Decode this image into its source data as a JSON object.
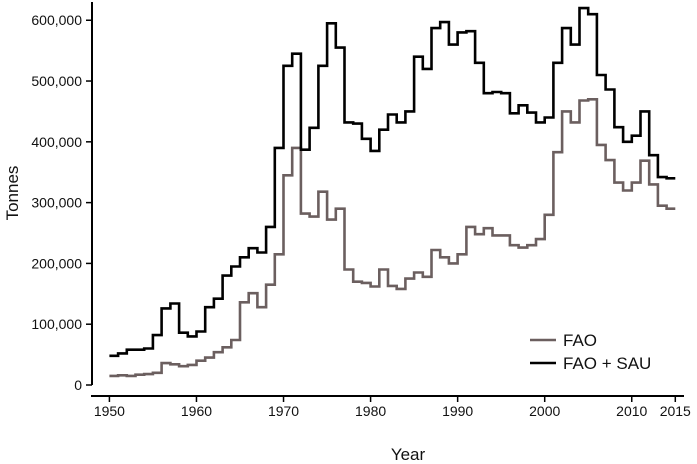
{
  "chart_data": {
    "type": "line",
    "step": true,
    "title": "",
    "xlabel": "Year",
    "ylabel": "Tonnes",
    "xlim": [
      1948,
      2016
    ],
    "ylim": [
      0,
      630000
    ],
    "x_ticks": [
      1950,
      1960,
      1970,
      1980,
      1990,
      2000,
      2010,
      2015
    ],
    "x_tick_labels": [
      "1950",
      "1960",
      "1970",
      "1980",
      "1990",
      "2000",
      "2010",
      "2015"
    ],
    "y_ticks": [
      0,
      100000,
      200000,
      300000,
      400000,
      500000,
      600000
    ],
    "y_tick_labels": [
      "0",
      "100,000",
      "200,000",
      "300,000",
      "400,000",
      "500,000",
      "600,000"
    ],
    "grid": false,
    "legend_position": "bottom-right",
    "x": [
      1950,
      1951,
      1952,
      1953,
      1954,
      1955,
      1956,
      1957,
      1958,
      1959,
      1960,
      1961,
      1962,
      1963,
      1964,
      1965,
      1966,
      1967,
      1968,
      1969,
      1970,
      1971,
      1972,
      1973,
      1974,
      1975,
      1976,
      1977,
      1978,
      1979,
      1980,
      1981,
      1982,
      1983,
      1984,
      1985,
      1986,
      1987,
      1988,
      1989,
      1990,
      1991,
      1992,
      1993,
      1994,
      1995,
      1996,
      1997,
      1998,
      1999,
      2000,
      2001,
      2002,
      2003,
      2004,
      2005,
      2006,
      2007,
      2008,
      2009,
      2010,
      2011,
      2012,
      2013,
      2014
    ],
    "series": [
      {
        "name": "FAO",
        "color": "#6b5f5f",
        "values": [
          15000,
          16000,
          15000,
          17000,
          18000,
          20000,
          36000,
          34000,
          31000,
          33000,
          40000,
          45000,
          54000,
          62000,
          74000,
          136000,
          151000,
          128000,
          165000,
          215000,
          345000,
          390000,
          282000,
          277000,
          318000,
          272000,
          290000,
          190000,
          170000,
          168000,
          162000,
          190000,
          163000,
          158000,
          175000,
          185000,
          178000,
          222000,
          210000,
          200000,
          215000,
          260000,
          248000,
          258000,
          246000,
          246000,
          230000,
          226000,
          230000,
          240000,
          280000,
          383000,
          450000,
          432000,
          468000,
          470000,
          395000,
          370000,
          333000,
          320000,
          333000,
          369000,
          330000,
          295000,
          290000
        ]
      },
      {
        "name": "FAO + SAU",
        "color": "#000000",
        "values": [
          48000,
          52000,
          58000,
          58000,
          60000,
          82000,
          126000,
          134000,
          86000,
          80000,
          88000,
          128000,
          142000,
          180000,
          195000,
          210000,
          225000,
          218000,
          260000,
          390000,
          525000,
          545000,
          387000,
          423000,
          525000,
          595000,
          555000,
          432000,
          430000,
          405000,
          385000,
          420000,
          445000,
          432000,
          450000,
          540000,
          520000,
          587000,
          597000,
          560000,
          580000,
          582000,
          530000,
          480000,
          482000,
          480000,
          447000,
          460000,
          448000,
          432000,
          440000,
          530000,
          587000,
          560000,
          620000,
          610000,
          510000,
          486000,
          424000,
          400000,
          410000,
          450000,
          378000,
          342000,
          340000
        ]
      }
    ]
  }
}
